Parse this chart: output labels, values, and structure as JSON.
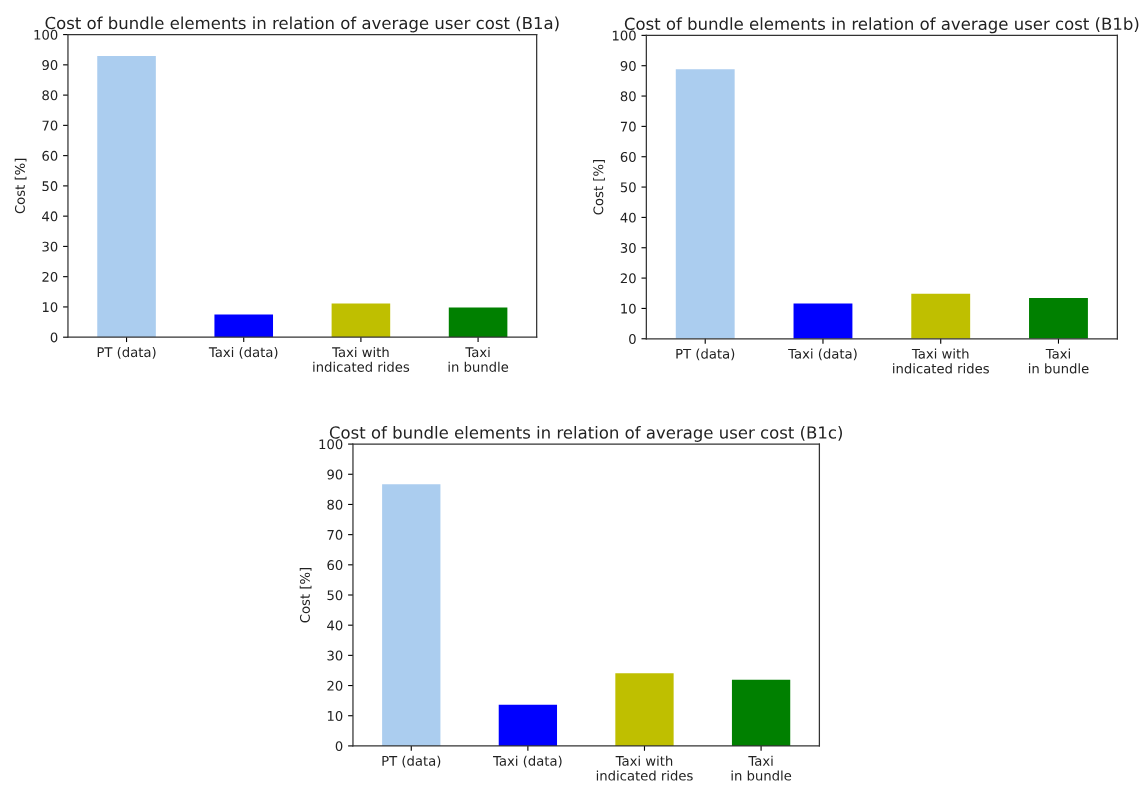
{
  "chart_data": [
    {
      "type": "bar",
      "title": "Cost of bundle elements in relation of average user cost (B1a)",
      "ylabel": "Cost [%]",
      "categories": [
        "PT (data)",
        "Taxi (data)",
        "Taxi with\nindicated rides",
        "Taxi\nin bundle"
      ],
      "values": [
        92.9,
        7.5,
        11.1,
        9.8
      ],
      "colors": [
        "#abcdef",
        "#0000ff",
        "#bfbf00",
        "#008000"
      ],
      "ylim": [
        0,
        100
      ],
      "yticks": [
        0,
        10,
        20,
        30,
        40,
        50,
        60,
        70,
        80,
        90,
        100
      ]
    },
    {
      "type": "bar",
      "title": "Cost of bundle elements in relation of average user cost (B1b)",
      "ylabel": "Cost [%]",
      "categories": [
        "PT (data)",
        "Taxi (data)",
        "Taxi with\nindicated rides",
        "Taxi\nin bundle"
      ],
      "values": [
        88.8,
        11.6,
        14.8,
        13.4
      ],
      "colors": [
        "#abcdef",
        "#0000ff",
        "#bfbf00",
        "#008000"
      ],
      "ylim": [
        0,
        100
      ],
      "yticks": [
        0,
        10,
        20,
        30,
        40,
        50,
        60,
        70,
        80,
        90,
        100
      ]
    },
    {
      "type": "bar",
      "title": "Cost of bundle elements in relation of average user cost (B1c)",
      "ylabel": "Cost [%]",
      "categories": [
        "PT (data)",
        "Taxi (data)",
        "Taxi with\nindicated rides",
        "Taxi\nin bundle"
      ],
      "values": [
        86.7,
        13.6,
        24.1,
        21.9
      ],
      "colors": [
        "#abcdef",
        "#0000ff",
        "#bfbf00",
        "#008000"
      ],
      "ylim": [
        0,
        100
      ],
      "yticks": [
        0,
        10,
        20,
        30,
        40,
        50,
        60,
        70,
        80,
        90,
        100
      ]
    }
  ]
}
